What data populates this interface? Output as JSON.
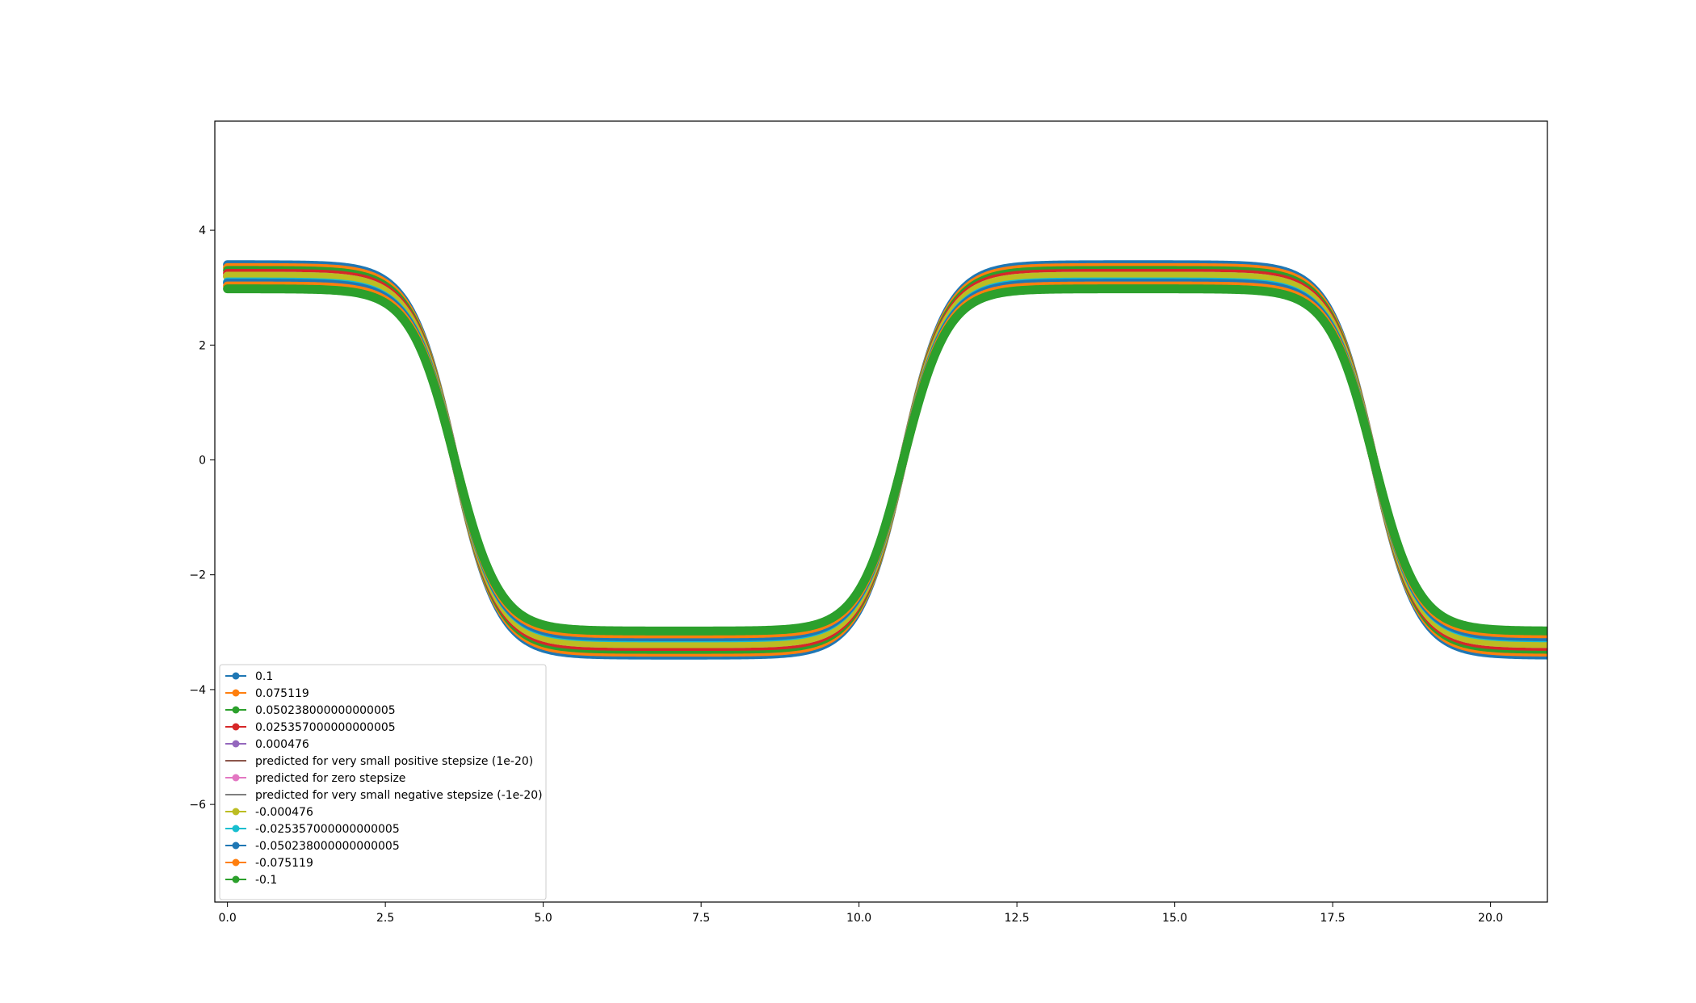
{
  "chart_data": {
    "type": "line",
    "title": "",
    "xlabel": "",
    "ylabel": "",
    "xlim": [
      -0.2,
      20.9
    ],
    "ylim": [
      -7.7,
      5.9
    ],
    "x_ticks": [
      0.0,
      2.5,
      5.0,
      7.5,
      10.0,
      12.5,
      15.0,
      17.5,
      20.0
    ],
    "x_tick_labels": [
      "0.0",
      "2.5",
      "5.0",
      "7.5",
      "10.0",
      "12.5",
      "15.0",
      "17.5",
      "20.0"
    ],
    "y_ticks": [
      4,
      2,
      0,
      -2,
      -4,
      -6
    ],
    "y_tick_labels": [
      "4",
      "2",
      "0",
      "−2",
      "−4",
      "−6"
    ],
    "grid": false,
    "legend_position": "lower-left",
    "waveform": {
      "x_start": 0.0,
      "x_end": 20.9,
      "period": 14.55,
      "falling_crossing": 3.6,
      "rising_crossing": 10.7,
      "plateau_reference": 3.2,
      "transition_width": 0.35
    },
    "series": [
      {
        "name": "0.1",
        "amplitude": 3.4,
        "color": "#1f77b4",
        "marker": true
      },
      {
        "name": "0.075119",
        "amplitude": 3.35,
        "color": "#ff7f0e",
        "marker": true
      },
      {
        "name": "0.050238000000000005",
        "amplitude": 3.3,
        "color": "#2ca02c",
        "marker": true
      },
      {
        "name": "0.025357000000000005",
        "amplitude": 3.25,
        "color": "#d62728",
        "marker": true
      },
      {
        "name": "0.000476",
        "amplitude": 3.2,
        "color": "#9467bd",
        "marker": true
      },
      {
        "name": "predicted for very small positive stepsize (1e-20)",
        "amplitude": 3.2,
        "color": "#8c564b",
        "marker": false
      },
      {
        "name": "predicted for zero stepsize",
        "amplitude": 3.2,
        "color": "#e377c2",
        "marker": true
      },
      {
        "name": "predicted for very small negative stepsize (-1e-20)",
        "amplitude": 3.2,
        "color": "#7f7f7f",
        "marker": false
      },
      {
        "name": "-0.000476",
        "amplitude": 3.2,
        "color": "#bcbd22",
        "marker": true
      },
      {
        "name": "-0.025357000000000005",
        "amplitude": 3.1,
        "color": "#17becf",
        "marker": true
      },
      {
        "name": "-0.050238000000000005",
        "amplitude": 3.08,
        "color": "#1f77b4",
        "marker": true
      },
      {
        "name": "-0.075119",
        "amplitude": 3.03,
        "color": "#ff7f0e",
        "marker": true
      },
      {
        "name": "-0.1",
        "amplitude": 2.98,
        "color": "#2ca02c",
        "marker": true
      }
    ]
  }
}
